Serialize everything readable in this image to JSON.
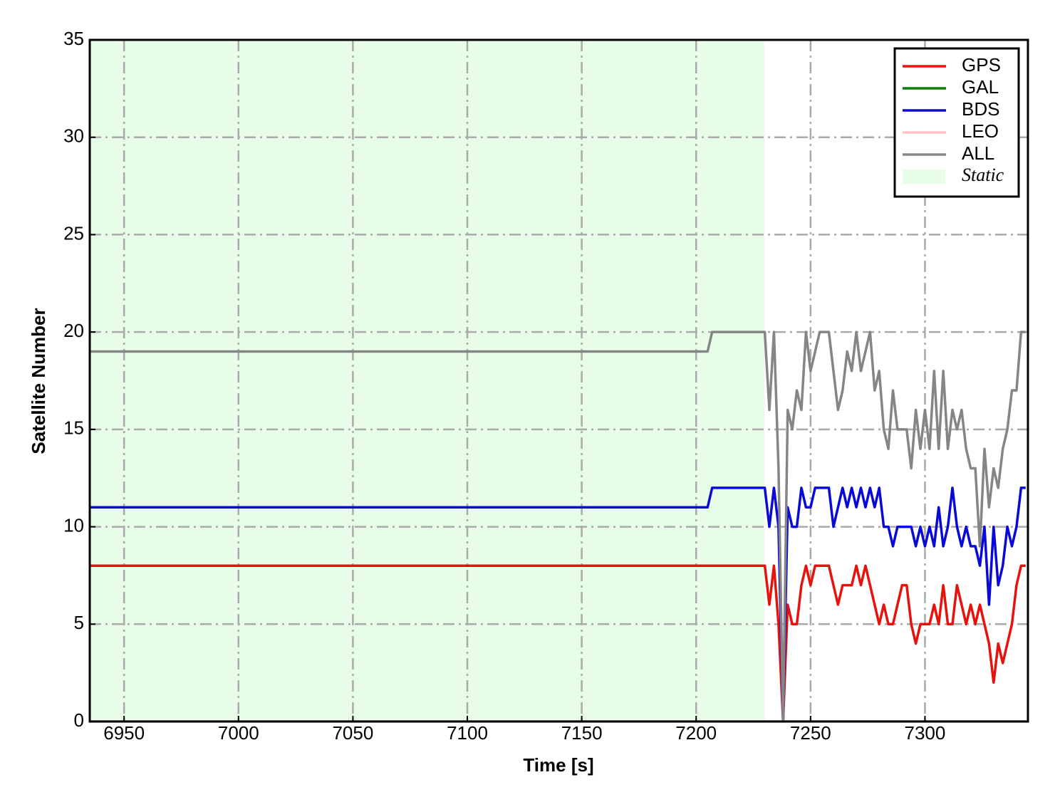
{
  "chart_data": {
    "type": "line",
    "xlabel": "Time [s]",
    "ylabel": "Satellite Number",
    "x": [
      6935,
      7205,
      7207,
      7230,
      7232,
      7234,
      7236,
      7238,
      7240,
      7242,
      7244,
      7246,
      7248,
      7250,
      7252,
      7254,
      7256,
      7258,
      7260,
      7262,
      7264,
      7266,
      7268,
      7270,
      7272,
      7274,
      7276,
      7278,
      7280,
      7282,
      7284,
      7286,
      7288,
      7290,
      7292,
      7294,
      7296,
      7298,
      7300,
      7302,
      7304,
      7306,
      7308,
      7310,
      7312,
      7314,
      7316,
      7318,
      7320,
      7322,
      7324,
      7326,
      7328,
      7330,
      7332,
      7334,
      7336,
      7338,
      7340,
      7342,
      7344
    ],
    "series": [
      {
        "name": "GPS",
        "color": "#e8120c",
        "values": [
          8,
          8,
          8,
          8,
          6,
          8,
          5,
          0,
          6,
          5,
          5,
          7,
          8,
          7,
          8,
          8,
          8,
          8,
          7,
          6,
          7,
          7,
          7,
          8,
          7,
          8,
          7,
          6,
          5,
          6,
          5,
          5,
          6,
          7,
          7,
          5,
          4,
          5,
          5,
          5,
          6,
          5,
          7,
          5,
          5,
          7,
          6,
          5,
          6,
          5,
          6,
          5,
          4,
          2,
          4,
          3,
          4,
          5,
          7,
          8,
          8
        ]
      },
      {
        "name": "GAL",
        "color": "#0a7d0a",
        "values": [
          0,
          0,
          0,
          0,
          0,
          0,
          0,
          0,
          0,
          0,
          0,
          0,
          0,
          0,
          0,
          0,
          0,
          0,
          0,
          0,
          0,
          0,
          0,
          0,
          0,
          0,
          0,
          0,
          0,
          0,
          0,
          0,
          0,
          0,
          0,
          0,
          0,
          0,
          0,
          0,
          0,
          0,
          0,
          0,
          0,
          0,
          0,
          0,
          0,
          0,
          0,
          0,
          0,
          0,
          0,
          0,
          0,
          0,
          0,
          0,
          0
        ]
      },
      {
        "name": "BDS",
        "color": "#0a0ad8",
        "values": [
          11,
          11,
          12,
          12,
          10,
          12,
          10,
          0,
          11,
          10,
          10,
          12,
          11,
          11,
          12,
          12,
          12,
          12,
          10,
          11,
          12,
          11,
          12,
          11,
          12,
          11,
          12,
          11,
          12,
          10,
          10,
          9,
          10,
          10,
          10,
          10,
          9,
          10,
          9,
          10,
          9,
          11,
          9,
          10,
          12,
          10,
          9,
          10,
          9,
          9,
          8,
          10,
          6,
          10,
          7,
          8,
          10,
          9,
          10,
          12,
          12
        ]
      },
      {
        "name": "LEO",
        "color": "#ffc0cb",
        "values": [
          0,
          0,
          0,
          0,
          0,
          0,
          0,
          0,
          0,
          0,
          0,
          0,
          0,
          0,
          0,
          0,
          0,
          0,
          0,
          0,
          0,
          0,
          0,
          0,
          0,
          0,
          0,
          0,
          0,
          0,
          0,
          0,
          0,
          0,
          0,
          0,
          0,
          0,
          0,
          0,
          0,
          0,
          0,
          0,
          0,
          0,
          0,
          0,
          0,
          0,
          0,
          0,
          0,
          0,
          0,
          0,
          0,
          0,
          0,
          0,
          0
        ]
      },
      {
        "name": "ALL",
        "color": "#858585",
        "values": [
          19,
          19,
          20,
          20,
          16,
          20,
          13,
          0,
          16,
          15,
          17,
          16,
          20,
          18,
          19,
          20,
          20,
          20,
          18,
          16,
          17,
          19,
          18,
          20,
          18,
          19,
          20,
          17,
          18,
          15,
          14,
          17,
          15,
          15,
          15,
          13,
          16,
          14,
          16,
          14,
          18,
          14,
          18,
          14,
          16,
          15,
          16,
          14,
          13,
          13,
          9,
          14,
          11,
          13,
          12,
          14,
          15,
          17,
          17,
          20,
          20
        ]
      }
    ],
    "span": {
      "name": "Static",
      "color": "#e8fde8",
      "x_range": [
        6935,
        7230
      ]
    },
    "xlim": [
      6935,
      7345
    ],
    "ylim": [
      0,
      35
    ],
    "xticks": [
      6950,
      7000,
      7050,
      7100,
      7150,
      7200,
      7250,
      7300
    ],
    "yticks": [
      0,
      5,
      10,
      15,
      20,
      25,
      30,
      35
    ],
    "grid": true,
    "legend": "upper right"
  }
}
